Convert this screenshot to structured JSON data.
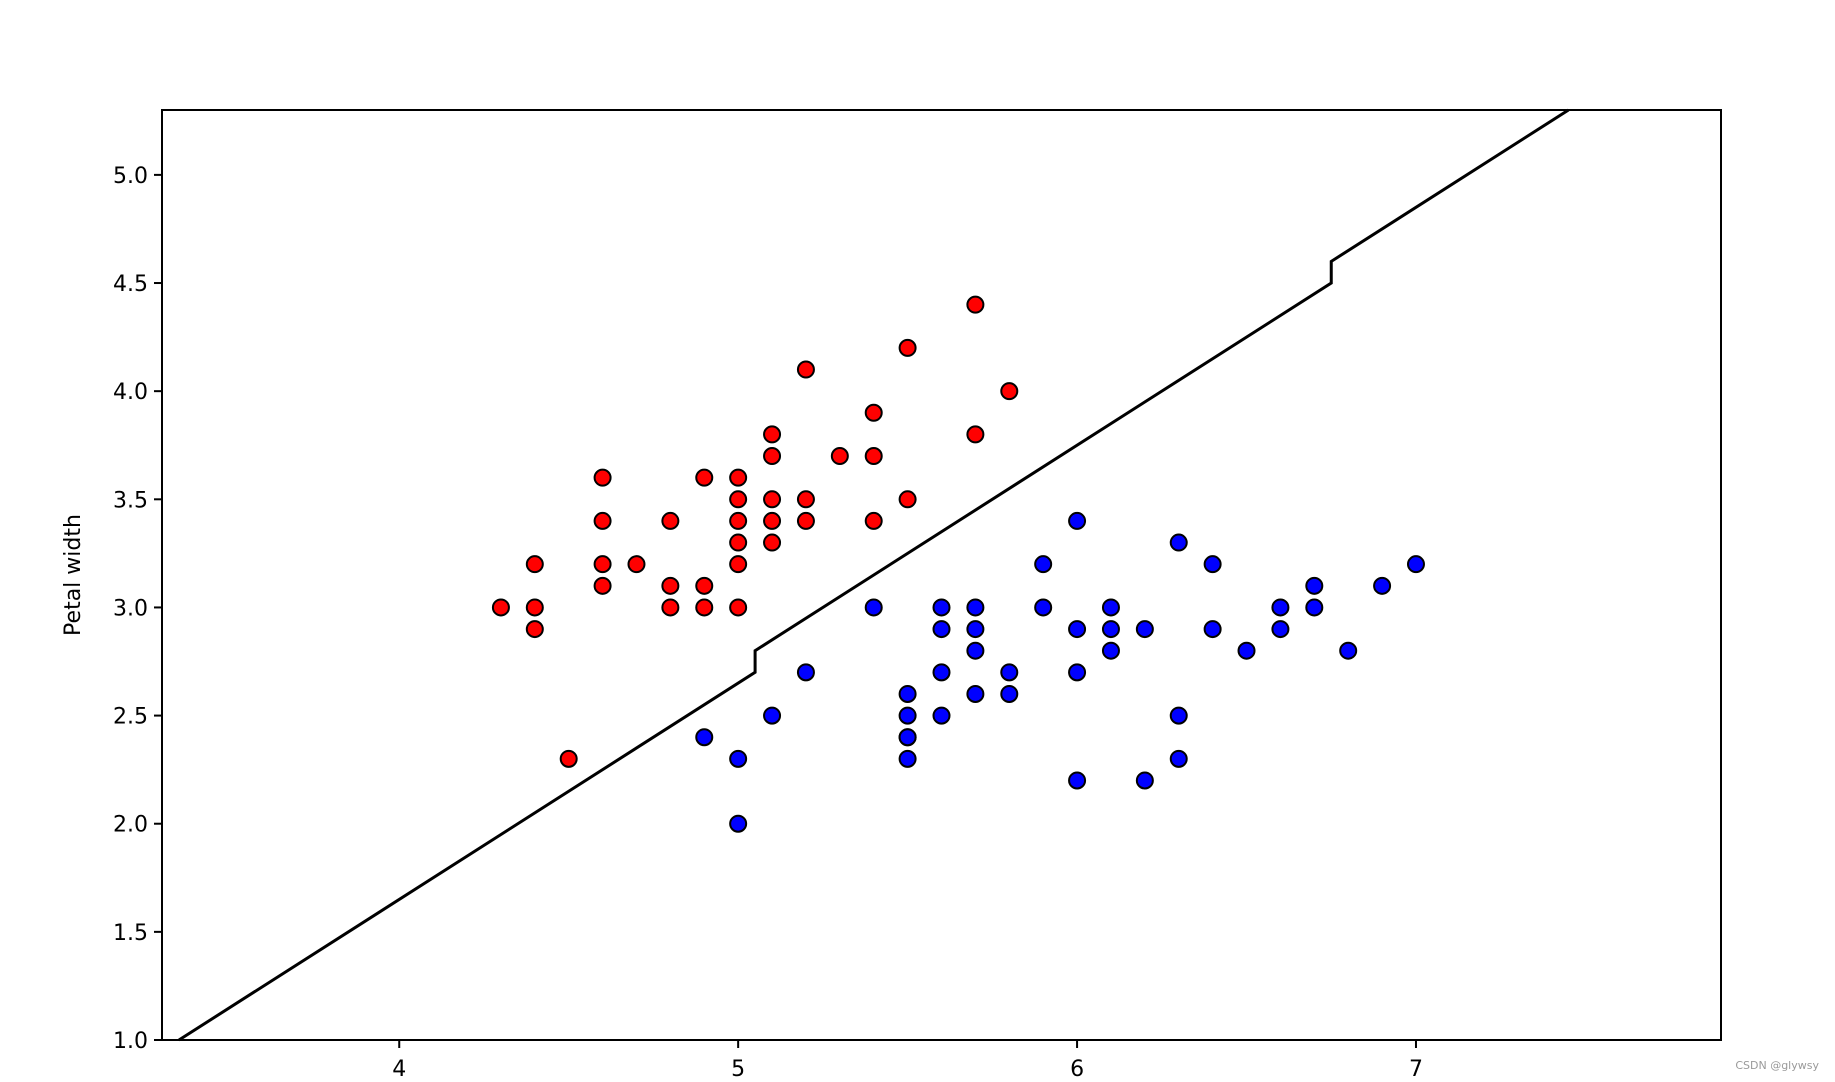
{
  "chart_data": {
    "type": "scatter",
    "title": "",
    "xlabel": "",
    "ylabel": "Petal width",
    "xlim": [
      3.3,
      7.9
    ],
    "ylim": [
      1.0,
      5.3
    ],
    "xticks": [
      4,
      5,
      6,
      7
    ],
    "xtick_labels": [
      "4",
      "5",
      "6",
      "7"
    ],
    "yticks": [
      1.0,
      1.5,
      2.0,
      2.5,
      3.0,
      3.5,
      4.0,
      4.5,
      5.0
    ],
    "ytick_labels": [
      "1.0",
      "1.5",
      "2.0",
      "2.5",
      "3.0",
      "3.5",
      "4.0",
      "4.5",
      "5.0"
    ],
    "grid": false,
    "series": [
      {
        "color": "#ff0000",
        "edgecolor": "#000000",
        "points": [
          [
            4.3,
            3.0
          ],
          [
            4.4,
            3.2
          ],
          [
            4.4,
            3.0
          ],
          [
            4.4,
            2.9
          ],
          [
            4.5,
            2.3
          ],
          [
            4.6,
            3.6
          ],
          [
            4.6,
            3.4
          ],
          [
            4.6,
            3.2
          ],
          [
            4.6,
            3.1
          ],
          [
            4.7,
            3.2
          ],
          [
            4.8,
            3.4
          ],
          [
            4.8,
            3.1
          ],
          [
            4.8,
            3.0
          ],
          [
            4.9,
            3.6
          ],
          [
            4.9,
            3.1
          ],
          [
            4.9,
            3.0
          ],
          [
            5.0,
            3.6
          ],
          [
            5.0,
            3.5
          ],
          [
            5.0,
            3.4
          ],
          [
            5.0,
            3.3
          ],
          [
            5.0,
            3.2
          ],
          [
            5.0,
            3.0
          ],
          [
            5.1,
            3.8
          ],
          [
            5.1,
            3.7
          ],
          [
            5.1,
            3.5
          ],
          [
            5.1,
            3.4
          ],
          [
            5.1,
            3.3
          ],
          [
            5.2,
            4.1
          ],
          [
            5.2,
            3.5
          ],
          [
            5.2,
            3.4
          ],
          [
            5.3,
            3.7
          ],
          [
            5.4,
            3.9
          ],
          [
            5.4,
            3.7
          ],
          [
            5.4,
            3.4
          ],
          [
            5.5,
            4.2
          ],
          [
            5.5,
            3.5
          ],
          [
            5.7,
            4.4
          ],
          [
            5.7,
            3.8
          ],
          [
            5.8,
            4.0
          ]
        ]
      },
      {
        "color": "#0000ff",
        "edgecolor": "#000000",
        "points": [
          [
            4.9,
            2.4
          ],
          [
            5.0,
            2.3
          ],
          [
            5.0,
            2.0
          ],
          [
            5.1,
            2.5
          ],
          [
            5.2,
            2.7
          ],
          [
            5.4,
            3.0
          ],
          [
            5.5,
            2.6
          ],
          [
            5.5,
            2.5
          ],
          [
            5.5,
            2.4
          ],
          [
            5.5,
            2.4
          ],
          [
            5.5,
            2.3
          ],
          [
            5.6,
            3.0
          ],
          [
            5.6,
            2.9
          ],
          [
            5.6,
            2.7
          ],
          [
            5.6,
            2.5
          ],
          [
            5.7,
            3.0
          ],
          [
            5.7,
            2.9
          ],
          [
            5.7,
            2.8
          ],
          [
            5.7,
            2.6
          ],
          [
            5.8,
            2.7
          ],
          [
            5.8,
            2.6
          ],
          [
            5.9,
            3.2
          ],
          [
            5.9,
            3.0
          ],
          [
            6.0,
            3.4
          ],
          [
            6.0,
            2.9
          ],
          [
            6.0,
            2.7
          ],
          [
            6.0,
            2.2
          ],
          [
            6.1,
            3.0
          ],
          [
            6.1,
            2.9
          ],
          [
            6.1,
            2.8
          ],
          [
            6.2,
            2.9
          ],
          [
            6.2,
            2.2
          ],
          [
            6.3,
            3.3
          ],
          [
            6.3,
            2.5
          ],
          [
            6.3,
            2.3
          ],
          [
            6.4,
            3.2
          ],
          [
            6.4,
            2.9
          ],
          [
            6.5,
            2.8
          ],
          [
            6.6,
            3.0
          ],
          [
            6.6,
            2.9
          ],
          [
            6.7,
            3.1
          ],
          [
            6.7,
            3.0
          ],
          [
            6.8,
            2.8
          ],
          [
            6.9,
            3.1
          ],
          [
            7.0,
            3.2
          ]
        ]
      }
    ],
    "decision_boundary": {
      "color": "#000000",
      "points": [
        [
          3.35,
          1.0
        ],
        [
          5.05,
          2.7
        ],
        [
          5.05,
          2.8
        ],
        [
          6.75,
          4.5
        ],
        [
          6.75,
          4.6
        ],
        [
          7.45,
          5.3
        ]
      ]
    }
  },
  "watermark": "CSDN @glywsy"
}
